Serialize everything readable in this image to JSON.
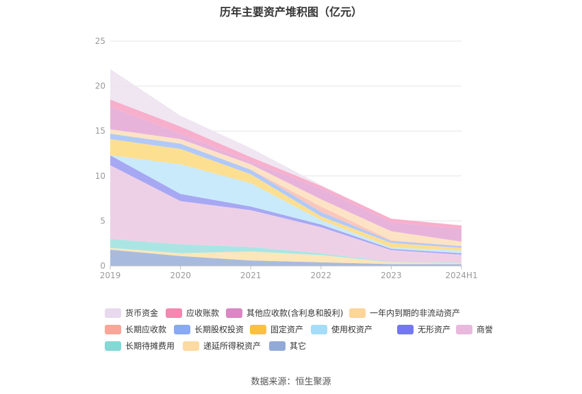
{
  "chart_data": {
    "type": "area",
    "title": "历年主要资产堆积图（亿元）",
    "x": [
      "2019",
      "2020",
      "2021",
      "2022",
      "2023",
      "2024H1"
    ],
    "ylim": [
      0,
      25
    ],
    "yticks": [
      0,
      5,
      10,
      15,
      20,
      25
    ],
    "grid": true,
    "legend_position": "bottom",
    "series": [
      {
        "name": "其它",
        "color": "#9fb4dc",
        "values": [
          1.8,
          1.1,
          0.6,
          0.4,
          0.2,
          0.2
        ]
      },
      {
        "name": "递延所得税资产",
        "color": "#fde3b2",
        "values": [
          0.2,
          0.3,
          1.0,
          0.8,
          0.2,
          0.1
        ]
      },
      {
        "name": "长期待摊费用",
        "color": "#a2e2e0",
        "values": [
          1.0,
          1.0,
          0.5,
          0.2,
          0.05,
          0.05
        ]
      },
      {
        "name": "商誉",
        "color": "#eccbe3",
        "values": [
          8.2,
          4.8,
          4.1,
          2.9,
          1.3,
          0.9
        ]
      },
      {
        "name": "无形资产",
        "color": "#9d9ef2",
        "values": [
          1.1,
          0.8,
          0.4,
          0.3,
          0.15,
          0.15
        ]
      },
      {
        "name": "使用权资产",
        "color": "#c3e8fb",
        "values": [
          0.0,
          3.3,
          2.6,
          0.5,
          0.15,
          0.3
        ]
      },
      {
        "name": "固定资产",
        "color": "#fddc86",
        "values": [
          1.8,
          1.7,
          1.0,
          0.4,
          0.5,
          0.3
        ]
      },
      {
        "name": "长期股权投资",
        "color": "#a9c3f7",
        "values": [
          0.6,
          0.6,
          0.5,
          0.5,
          0.2,
          0.2
        ]
      },
      {
        "name": "长期应收款",
        "color": "#fbc1b6",
        "values": [
          0.0,
          0.0,
          0.0,
          0.6,
          0.1,
          0.0
        ]
      },
      {
        "name": "一年内到期的非流动资产",
        "color": "#fde0bf",
        "values": [
          0.5,
          0.5,
          0.6,
          0.8,
          1.0,
          0.5
        ]
      },
      {
        "name": "其他应收款(含利息和股利)",
        "color": "#e4abd7",
        "values": [
          2.5,
          0.6,
          0.3,
          1.2,
          1.0,
          1.4
        ]
      },
      {
        "name": "应收账款",
        "color": "#f7a6c6",
        "values": [
          0.8,
          0.8,
          0.5,
          0.3,
          0.4,
          0.4
        ]
      },
      {
        "name": "货币资金",
        "color": "#ede3f1",
        "values": [
          3.4,
          1.2,
          1.0,
          0.1,
          0.0,
          0.0
        ]
      }
    ]
  },
  "legend_labels": [
    "货币资金",
    "应收账款",
    "其他应收款(含利息和股利)",
    "一年内到期的非流动资产",
    "长期应收款",
    "长期股权投资",
    "固定资产",
    "使用权资产",
    "无形资产",
    "商誉",
    "长期待摊费用",
    "递延所得税资产",
    "其它"
  ],
  "legend_colors": [
    "#e8d9ee",
    "#f587b0",
    "#db86c5",
    "#fcd598",
    "#f9a698",
    "#89a8f5",
    "#fbc13e",
    "#a5ddf8",
    "#7378f0",
    "#e8b9dd",
    "#84d8d6",
    "#fddaa2",
    "#92aad8"
  ],
  "source": "数据来源：恒生聚源"
}
